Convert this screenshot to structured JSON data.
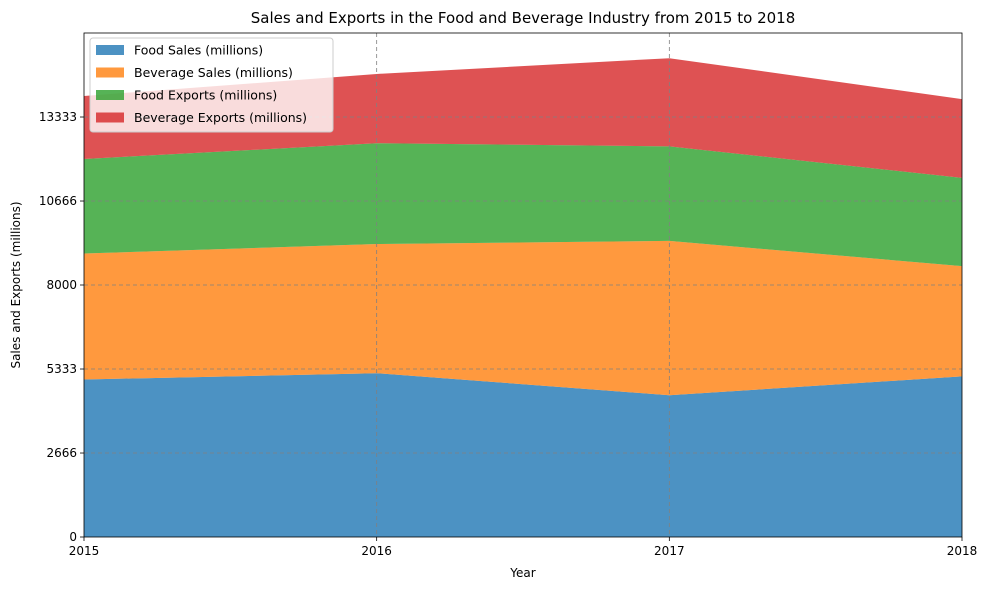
{
  "chart_data": {
    "type": "area",
    "stacked": true,
    "title": "Sales and Exports in the Food and Beverage Industry from 2015 to 2018",
    "xlabel": "Year",
    "ylabel": "Sales and Exports (millions)",
    "x": [
      "2015",
      "2016",
      "2017",
      "2018"
    ],
    "ylim": [
      0,
      16000
    ],
    "yticks": [
      "0",
      "2666",
      "5333",
      "8000",
      "10666",
      "13333"
    ],
    "grid": true,
    "legend_position": "top-left",
    "series": [
      {
        "name": "Food Sales (millions)",
        "color": "#1f77b4",
        "values": [
          5000,
          5200,
          4500,
          5100
        ]
      },
      {
        "name": "Beverage Sales (millions)",
        "color": "#ff7f0e",
        "values": [
          4000,
          4100,
          4900,
          3500
        ]
      },
      {
        "name": "Food Exports (millions)",
        "color": "#2ca02c",
        "values": [
          3000,
          3200,
          3000,
          2800
        ]
      },
      {
        "name": "Beverage Exports (millions)",
        "color": "#d62728",
        "values": [
          2000,
          2200,
          2800,
          2500
        ]
      }
    ]
  }
}
